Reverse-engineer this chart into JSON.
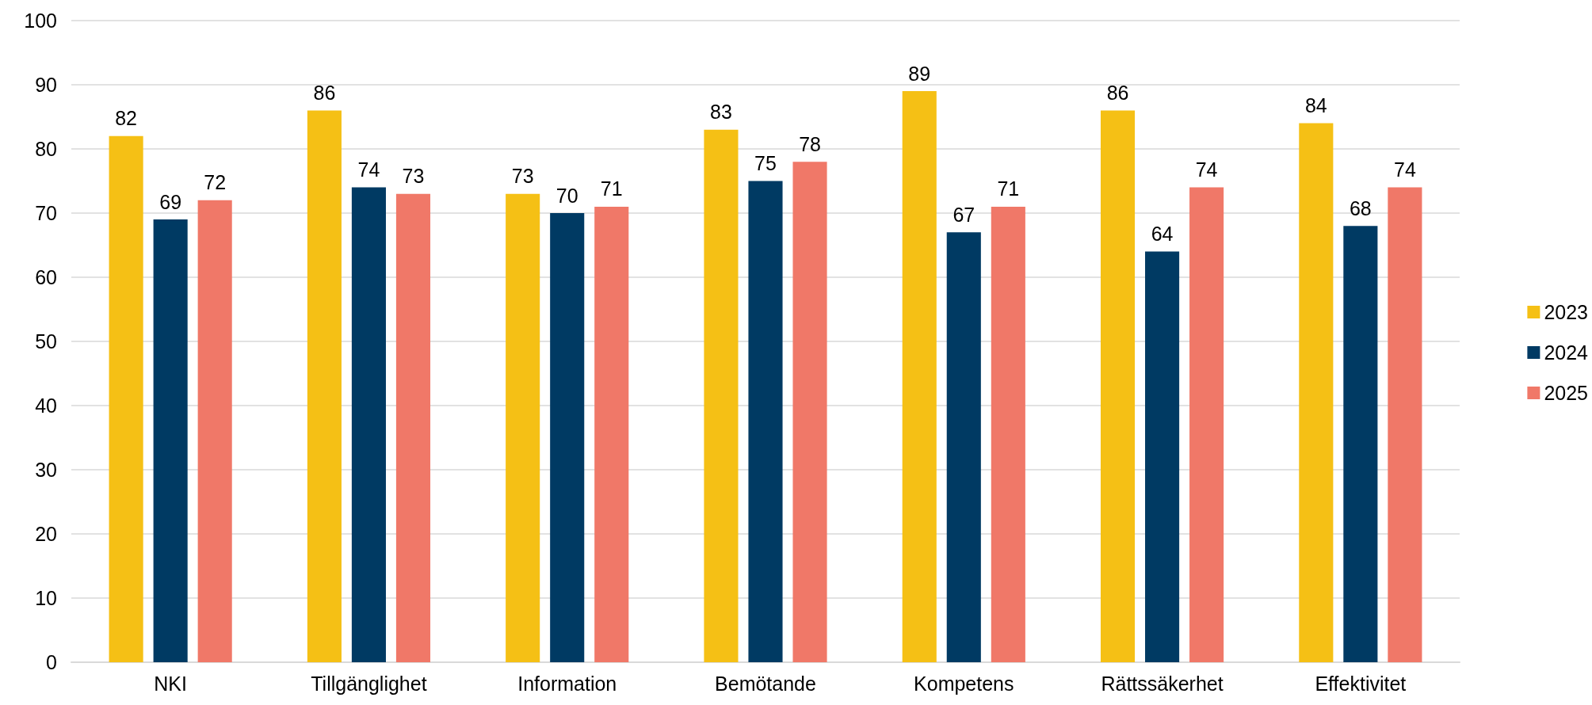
{
  "chart_data": {
    "type": "bar",
    "categories": [
      "NKI",
      "Tillgänglighet",
      "Information",
      "Bemötande",
      "Kompetens",
      "Rättssäkerhet",
      "Effektivitet"
    ],
    "series": [
      {
        "name": "2023",
        "color": "#f5c015",
        "values": [
          82,
          86,
          73,
          83,
          89,
          86,
          84
        ]
      },
      {
        "name": "2024",
        "color": "#003a63",
        "values": [
          69,
          74,
          70,
          75,
          67,
          64,
          68
        ]
      },
      {
        "name": "2025",
        "color": "#f07868",
        "values": [
          72,
          73,
          71,
          78,
          71,
          74,
          74
        ]
      }
    ],
    "ylim": [
      0,
      100
    ],
    "yticks": [
      0,
      10,
      20,
      30,
      40,
      50,
      60,
      70,
      80,
      90,
      100
    ],
    "grid": "y",
    "legend": "right",
    "data_labels": true
  }
}
